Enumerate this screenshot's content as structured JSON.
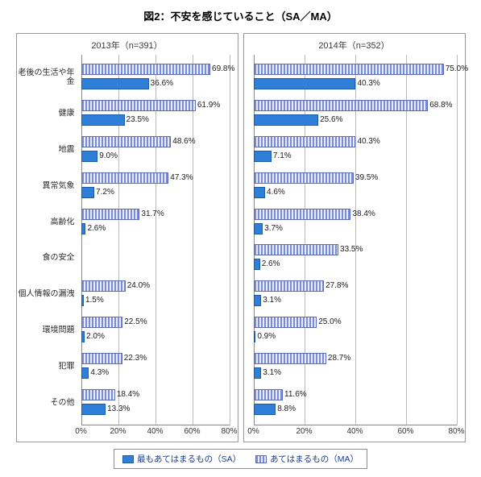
{
  "title": "図2：不安を感じていること（SA／MA）",
  "xmax": 80,
  "xtick_step": 20,
  "colors": {
    "sa_fill": "#2f7ed8",
    "sa_border": "#1a5aa8",
    "ma_stripe_dark": "#7a8bd8",
    "ma_stripe_light": "#e8ecfa",
    "ma_border": "#5a6bc0",
    "grid": "#bbbbbb",
    "legend_border": "#8888aa",
    "legend_text": "#1a3a8a"
  },
  "categories": [
    "老後の生活や年金",
    "健康",
    "地震",
    "異常気象",
    "高齢化",
    "食の安全",
    "個人情報の漏洩",
    "環境問題",
    "犯罪",
    "その他"
  ],
  "panels": [
    {
      "title": "2013年（n=391）",
      "show_category_labels": true,
      "ma": [
        69.8,
        61.9,
        48.6,
        47.3,
        31.7,
        null,
        24.0,
        22.5,
        22.3,
        18.4
      ],
      "sa": [
        36.6,
        23.5,
        9.0,
        7.2,
        2.6,
        null,
        1.5,
        2.0,
        4.3,
        13.3
      ]
    },
    {
      "title": "2014年（n=352）",
      "show_category_labels": false,
      "ma": [
        75.0,
        68.8,
        40.3,
        39.5,
        38.4,
        33.5,
        27.8,
        25.0,
        28.7,
        11.6
      ],
      "sa": [
        40.3,
        25.6,
        7.1,
        4.6,
        3.7,
        2.6,
        3.1,
        0.9,
        3.1,
        8.8
      ]
    }
  ],
  "legend": {
    "sa": "最もあてはまるもの（SA）",
    "ma": "あてはまるもの（MA）"
  }
}
